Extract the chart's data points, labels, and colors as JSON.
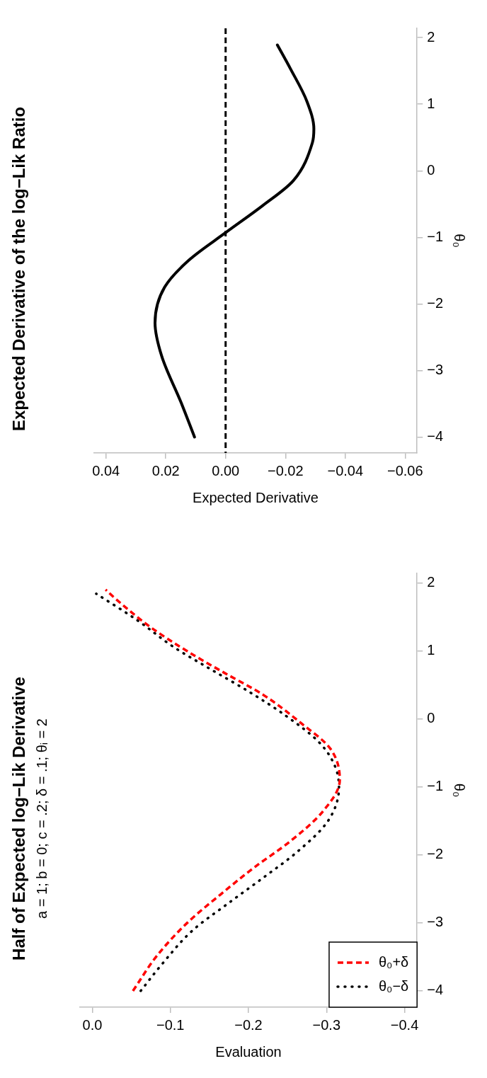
{
  "chart_data": [
    {
      "type": "line",
      "orientation": "horizontal",
      "title": "Expected Derivative of the log−Lik Ratio",
      "xlabel": "Expected Derivative",
      "ylabel": "θ₀",
      "ylim": [
        -4.24,
        2.14
      ],
      "yticks": [
        {
          "value": -4,
          "label": "−4"
        },
        {
          "value": -3,
          "label": "−3"
        },
        {
          "value": -2,
          "label": "−2"
        },
        {
          "value": -1,
          "label": "−1"
        },
        {
          "value": 0,
          "label": "0"
        },
        {
          "value": 1,
          "label": "1"
        },
        {
          "value": 2,
          "label": "2"
        }
      ],
      "xlim": [
        0.044,
        -0.064
      ],
      "xticks": [
        {
          "value": 0.04,
          "label": "0.04"
        },
        {
          "value": 0.02,
          "label": "0.02"
        },
        {
          "value": 0,
          "label": "0.00"
        },
        {
          "value": -0.02,
          "label": "−0.02"
        },
        {
          "value": -0.04,
          "label": "−0.04"
        },
        {
          "value": -0.06,
          "label": "−0.06"
        }
      ],
      "grid": false,
      "marker": "none",
      "ref_lines": [
        {
          "axis": "x",
          "value": 0,
          "color": "#000000",
          "line_style": "dashed"
        }
      ],
      "series": [
        {
          "color": "#000000",
          "line_style": "solid",
          "x": [
            -4,
            -3.48,
            -2.78,
            -2.285,
            -1.75,
            -1.34,
            -0.93,
            -0.52,
            -0.15,
            0.42,
            0.63,
            1.04,
            1.53,
            1.89
          ],
          "values": [
            0.0104,
            0.0149,
            0.0214,
            0.0236,
            0.0204,
            0.0122,
            0,
            -0.0125,
            -0.0226,
            -0.029,
            -0.0295,
            -0.0272,
            -0.0217,
            -0.0173
          ]
        }
      ]
    },
    {
      "type": "line",
      "orientation": "horizontal",
      "title": "Half of Expected log−Lik Derivative",
      "subtitle": "a = 1; b = 0; c = .2; δ = .1; θᵢ = 2",
      "xlabel": "Evaluation",
      "ylabel": "θ₀",
      "ylim": [
        -4.24,
        2.14
      ],
      "yticks": [
        {
          "value": -4,
          "label": "−4"
        },
        {
          "value": -3,
          "label": "−3"
        },
        {
          "value": -2,
          "label": "−2"
        },
        {
          "value": -1,
          "label": "−1"
        },
        {
          "value": 0,
          "label": "0"
        },
        {
          "value": 1,
          "label": "1"
        },
        {
          "value": 2,
          "label": "2"
        }
      ],
      "xlim": [
        0.016,
        -0.416
      ],
      "xticks": [
        {
          "value": 0,
          "label": "0.0"
        },
        {
          "value": -0.1,
          "label": "−0.1"
        },
        {
          "value": -0.2,
          "label": "−0.2"
        },
        {
          "value": -0.3,
          "label": "−0.3"
        },
        {
          "value": -0.4,
          "label": "−0.4"
        }
      ],
      "grid": false,
      "marker": "none",
      "legend": "bottom right",
      "series": [
        {
          "name": "θ₀+δ",
          "color": "#ff0000",
          "line_style": "dashed",
          "x": [
            -4,
            -3.48,
            -2.995,
            -2.575,
            -2.18,
            -1.805,
            -1.365,
            -0.9,
            -0.44,
            -0.05,
            0.353,
            0.684,
            0.992,
            1.345,
            1.763,
            1.9
          ],
          "values": [
            -0.052,
            -0.083,
            -0.122,
            -0.165,
            -0.208,
            -0.253,
            -0.295,
            -0.317,
            -0.305,
            -0.266,
            -0.219,
            -0.168,
            -0.122,
            -0.075,
            -0.03,
            -0.017
          ]
        },
        {
          "name": "θ₀−δ",
          "color": "#000000",
          "line_style": "dotted",
          "x": [
            -4,
            -3.61,
            -3.105,
            -2.73,
            -2.335,
            -1.96,
            -1.5,
            -1.01,
            -0.7,
            -0.35,
            0.045,
            0.397,
            0.727,
            1.058,
            1.455,
            1.84
          ],
          "values": [
            -0.062,
            -0.089,
            -0.129,
            -0.172,
            -0.219,
            -0.262,
            -0.302,
            -0.316,
            -0.311,
            -0.291,
            -0.248,
            -0.201,
            -0.152,
            -0.104,
            -0.057,
            -0.005
          ]
        }
      ]
    }
  ]
}
